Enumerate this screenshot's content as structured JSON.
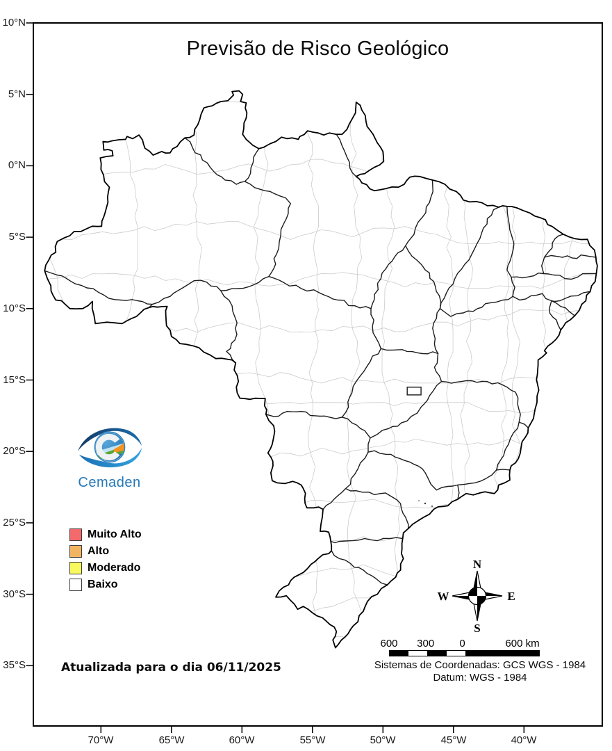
{
  "title": "Previsão de Risco Geológico",
  "map": {
    "lat_ticks": [
      "10°N",
      "5°N",
      "0°N",
      "5°S",
      "10°S",
      "15°S",
      "20°S",
      "25°S",
      "30°S",
      "35°S"
    ],
    "lon_ticks": [
      "70°W",
      "65°W",
      "60°W",
      "55°W",
      "50°W",
      "45°W",
      "40°W"
    ],
    "frame_color": "#000000",
    "state_border_color": "#1c1c1c",
    "municipal_border_color": "#cbcbcb"
  },
  "legend": {
    "items": [
      {
        "label": "Muito Alto",
        "color": "#f4696b"
      },
      {
        "label": "Alto",
        "color": "#f2b461"
      },
      {
        "label": "Moderado",
        "color": "#f7f95f"
      },
      {
        "label": "Baixo",
        "color": "#ffffff"
      }
    ]
  },
  "logo": {
    "caption": "Cemaden",
    "caption_color": "#2577b6"
  },
  "compass": {
    "north": "N",
    "south": "S",
    "east": "E",
    "west": "W"
  },
  "scale_bar": {
    "labels": [
      "600",
      "300",
      "0",
      "600 km"
    ]
  },
  "credits": {
    "line1": "Sistemas de Coordenadas: GCS WGS - 1984",
    "line2": "Datum: WGS - 1984"
  },
  "footer": {
    "updated_text": "Atualizada para o dia 06/11/2025"
  }
}
